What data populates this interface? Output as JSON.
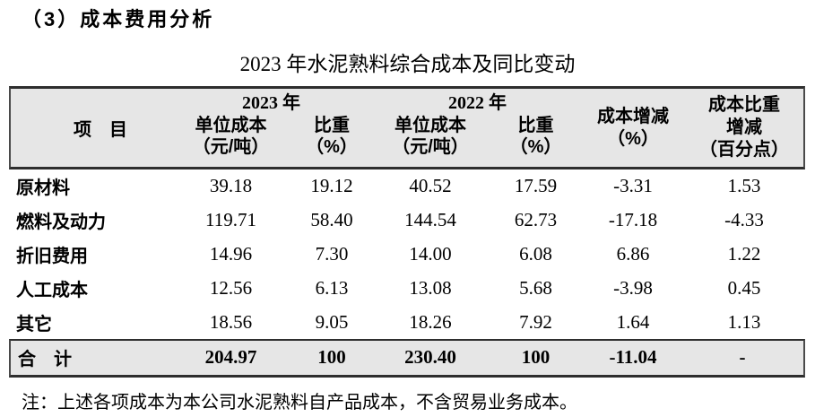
{
  "page": {
    "section_heading": "（3）成本费用分析",
    "table_title": "2023 年水泥熟料综合成本及同比变动",
    "note": "注：上述各项成本为本公司水泥熟料自产品成本，不含贸易业务成本。"
  },
  "table": {
    "header": {
      "item": "项　目",
      "group_2023": "2023 年",
      "group_2022": "2022 年",
      "unit_cost_line1": "单位成本",
      "unit_cost_line2": "（元/吨）",
      "weight_line1": "比重",
      "weight_line2": "（%）",
      "cost_change_line1": "成本增减",
      "cost_change_line2": "（%）",
      "weight_change_line1": "成本比重",
      "weight_change_line2": "增减",
      "weight_change_line3": "（百分点）"
    },
    "rows": [
      {
        "item": "原材料",
        "uc2023": "39.18",
        "w2023": "19.12",
        "uc2022": "40.52",
        "w2022": "17.59",
        "cost_change": "-3.31",
        "weight_change": "1.53"
      },
      {
        "item": "燃料及动力",
        "uc2023": "119.71",
        "w2023": "58.40",
        "uc2022": "144.54",
        "w2022": "62.73",
        "cost_change": "-17.18",
        "weight_change": "-4.33"
      },
      {
        "item": "折旧费用",
        "uc2023": "14.96",
        "w2023": "7.30",
        "uc2022": "14.00",
        "w2022": "6.08",
        "cost_change": "6.86",
        "weight_change": "1.22"
      },
      {
        "item": "人工成本",
        "uc2023": "12.56",
        "w2023": "6.13",
        "uc2022": "13.08",
        "w2022": "5.68",
        "cost_change": "-3.98",
        "weight_change": "0.45"
      },
      {
        "item": "其它",
        "uc2023": "18.56",
        "w2023": "9.05",
        "uc2022": "18.26",
        "w2022": "7.92",
        "cost_change": "1.64",
        "weight_change": "1.13"
      }
    ],
    "total": {
      "item": "合　计",
      "uc2023": "204.97",
      "w2023": "100",
      "uc2022": "230.40",
      "w2022": "100",
      "cost_change": "-11.04",
      "weight_change": "-"
    },
    "colors": {
      "band_bg": "#e6e6e6",
      "rule": "#2e2e2e"
    }
  }
}
